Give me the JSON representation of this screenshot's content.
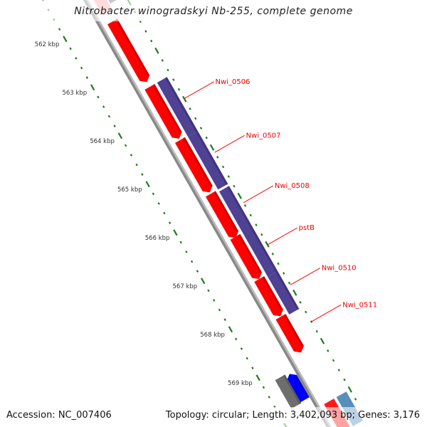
{
  "title": "Nitrobacter winogradskyi Nb-255, complete genome",
  "footer": {
    "accession": "Accession: NC_007406",
    "summary": "Topology: circular; Length: 3,402,093 bp; Genes: 3,176"
  },
  "colors": {
    "backbone": "#888888",
    "forward_gene": "#ff0000",
    "cds_other": "#4f4294",
    "reverse_gene": "#0000ff",
    "reverse_other": "#6e6e6e",
    "tick": "#1a7f1a",
    "label": "#ff0000"
  },
  "ticks": [
    {
      "kbp": 562,
      "label": "562 kbp"
    },
    {
      "kbp": 563,
      "label": "563 kbp"
    },
    {
      "kbp": 564,
      "label": "564 kbp"
    },
    {
      "kbp": 565,
      "label": "565 kbp"
    },
    {
      "kbp": 566,
      "label": "566 kbp"
    },
    {
      "kbp": 567,
      "label": "567 kbp"
    },
    {
      "kbp": 568,
      "label": "568 kbp"
    },
    {
      "kbp": 569,
      "label": "569 kbp"
    }
  ],
  "genes": [
    {
      "track": "forward",
      "color": "#ff0000",
      "start": 562.15,
      "end": 563.4
    },
    {
      "track": "forward",
      "color": "#ff0000",
      "start": 563.5,
      "end": 564.57
    },
    {
      "track": "forward",
      "color": "#ff0000",
      "start": 564.6,
      "end": 565.68
    },
    {
      "track": "forward",
      "color": "#ff0000",
      "start": 565.71,
      "end": 566.62
    },
    {
      "track": "forward",
      "color": "#ff0000",
      "start": 566.6,
      "end": 567.47
    },
    {
      "track": "forward",
      "color": "#ff0000",
      "start": 567.47,
      "end": 568.24
    },
    {
      "track": "forward",
      "color": "#ff0000",
      "start": 568.25,
      "end": 568.99
    },
    {
      "track": "cds",
      "color": "#4f4294",
      "start": 563.5,
      "end": 564.62
    },
    {
      "track": "cds",
      "color": "#4f4294",
      "start": 564.62,
      "end": 565.71
    },
    {
      "track": "cds",
      "color": "#4f4294",
      "start": 565.75,
      "end": 567.51
    },
    {
      "track": "cds",
      "color": "#4f4294",
      "start": 567.51,
      "end": 568.29
    },
    {
      "track": "reverse",
      "color": "#0000ff",
      "start": 569.22,
      "end": 569.76
    },
    {
      "track": "reverse_other",
      "color": "#6e6e6e",
      "start": 569.19,
      "end": 569.78
    }
  ],
  "labels": [
    {
      "text": "Nwi_0506",
      "kbp": 563.99
    },
    {
      "text": "Nwi_0507",
      "kbp": 565.1
    },
    {
      "text": "Nwi_0508",
      "kbp": 566.14
    },
    {
      "text": "pstB",
      "kbp": 567.01
    },
    {
      "text": "Nwi_0510",
      "kbp": 567.84
    },
    {
      "text": "Nwi_0511",
      "kbp": 568.6
    }
  ]
}
